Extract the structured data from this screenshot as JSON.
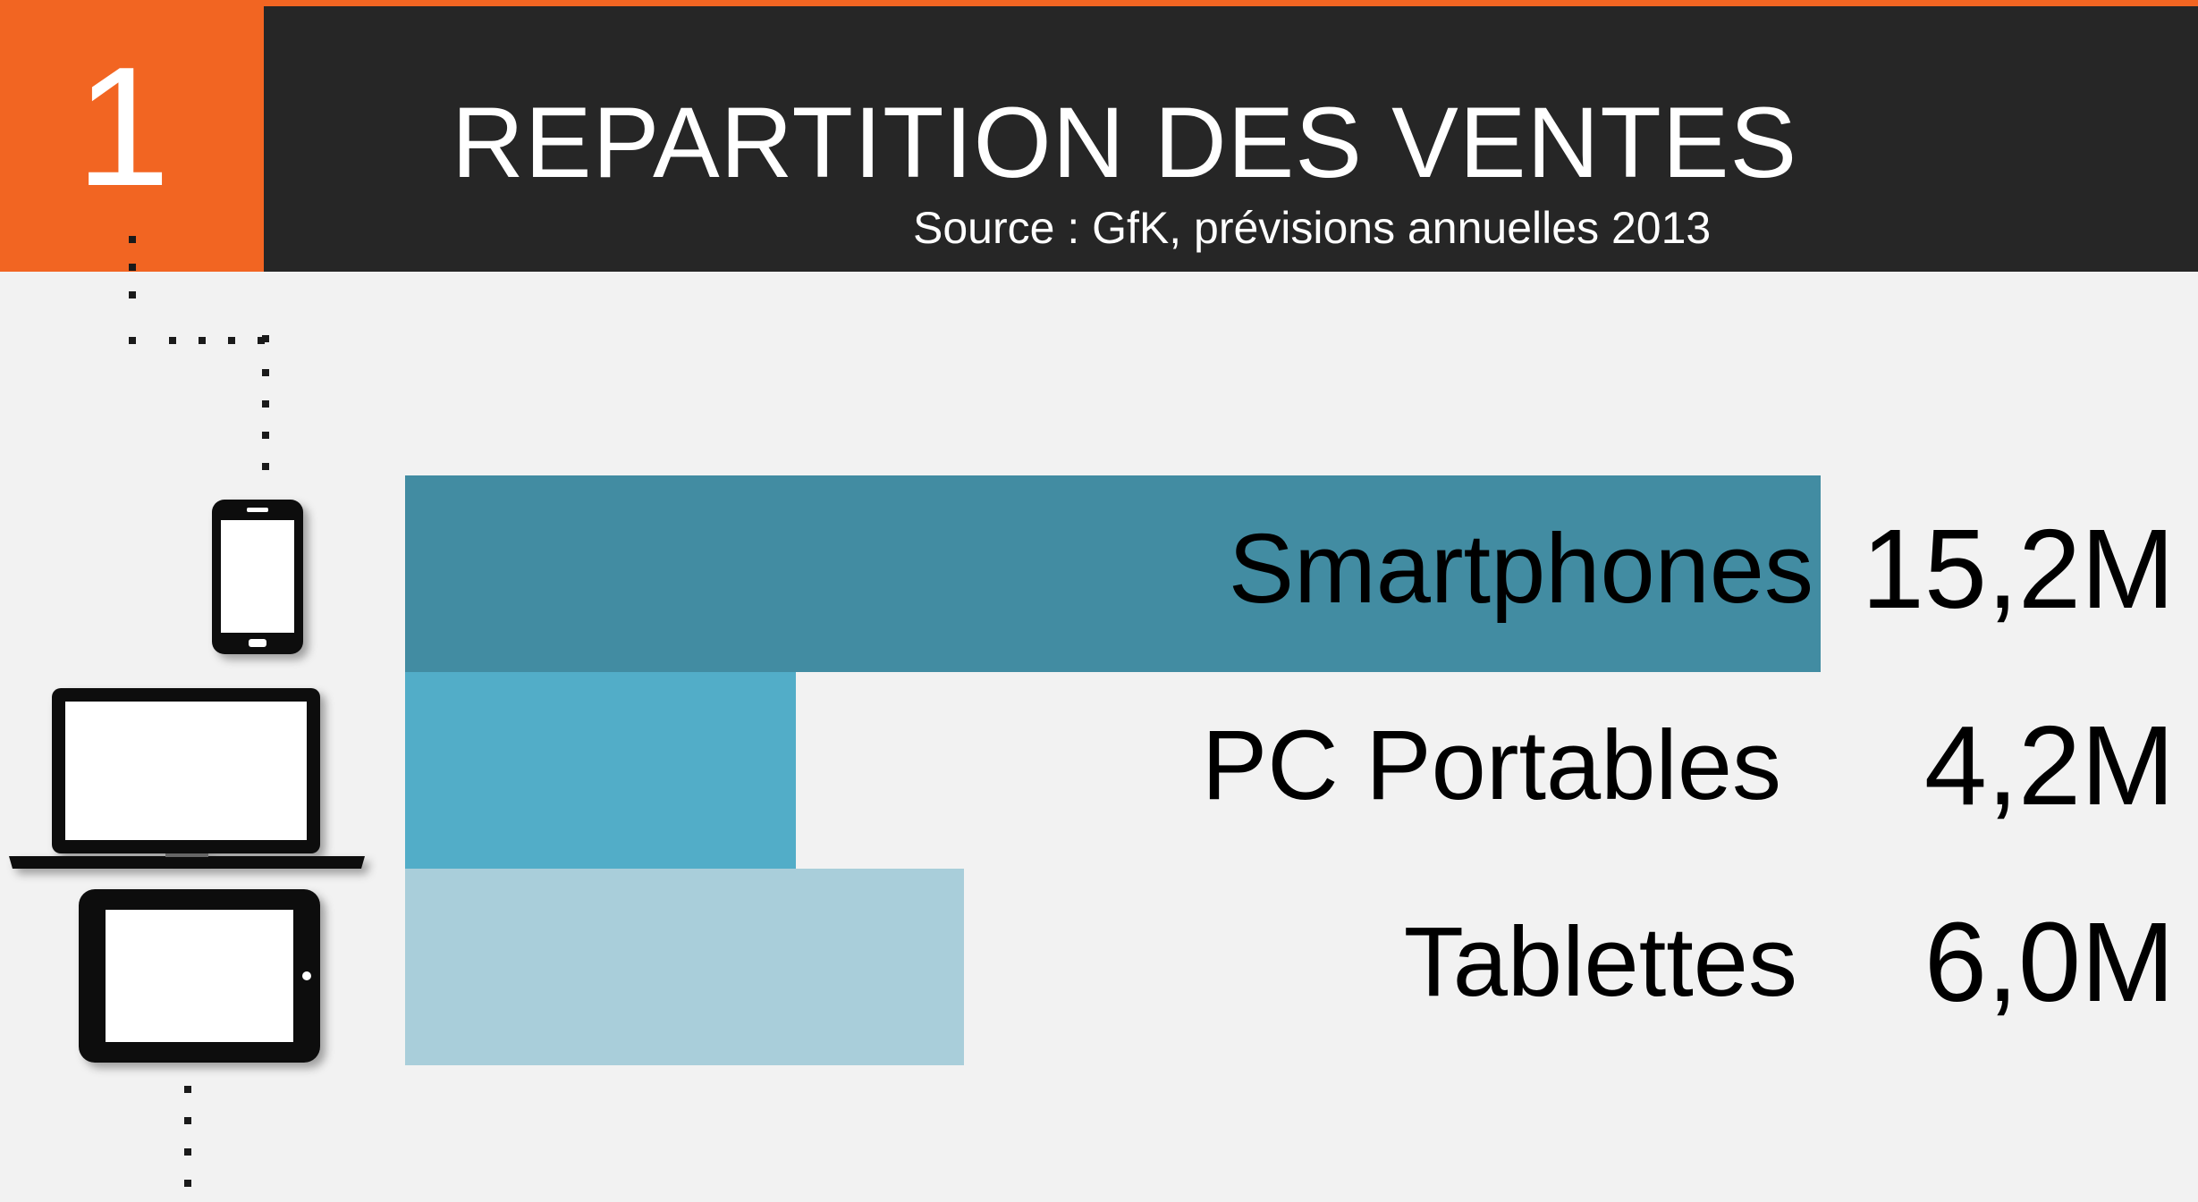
{
  "header": {
    "number": "1",
    "title": "REPARTITION DES VENTES",
    "source": "Source : GfK, prévisions annuelles 2013"
  },
  "colors": {
    "accent_orange": "#f26522",
    "header_dark": "#262626",
    "background": "#f2f2f2"
  },
  "icons": [
    "smartphone-icon",
    "laptop-icon",
    "tablet-icon"
  ],
  "chart_data": {
    "type": "bar",
    "orientation": "horizontal",
    "unit": "M",
    "categories": [
      "Smartphones",
      "PC Portables",
      "Tablettes"
    ],
    "values": [
      15.2,
      4.2,
      6.0
    ],
    "value_labels": [
      "15,2M",
      "4,2M",
      "6,0M"
    ],
    "colors": [
      "#428ca2",
      "#52adc8",
      "#a9ceda"
    ],
    "xlim": [
      0,
      15.2
    ],
    "grid": false,
    "legend": "none"
  }
}
